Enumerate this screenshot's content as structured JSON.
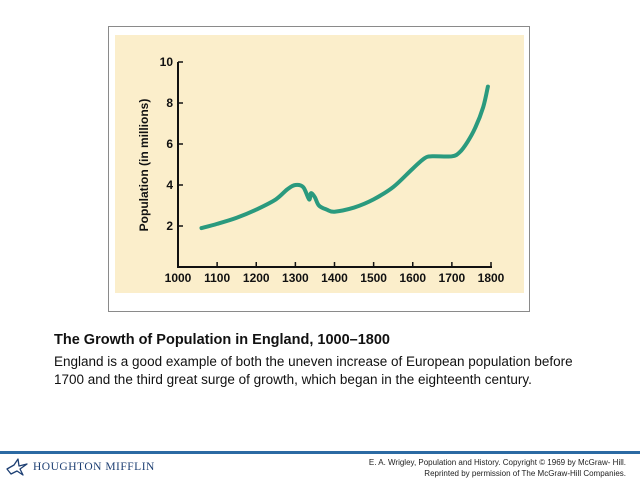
{
  "chart_data": {
    "type": "line",
    "ylabel": "Population (in millions)",
    "xlim": [
      1000,
      1800
    ],
    "ylim": [
      0,
      10
    ],
    "xticks": [
      1000,
      1100,
      1200,
      1300,
      1400,
      1500,
      1600,
      1700,
      1800
    ],
    "yticks": [
      2,
      4,
      6,
      8,
      10
    ],
    "grid": false,
    "line_color": "#2a9a7e",
    "background_color": "#fbeecb",
    "series": [
      {
        "x": [
          1060,
          1100,
          1150,
          1200,
          1250,
          1280,
          1300,
          1320,
          1335,
          1340,
          1350,
          1360,
          1380,
          1400,
          1450,
          1500,
          1550,
          1600,
          1630,
          1650,
          1700,
          1720,
          1740,
          1760,
          1780,
          1792
        ],
        "y": [
          1.9,
          2.1,
          2.4,
          2.8,
          3.3,
          3.8,
          4.0,
          3.9,
          3.3,
          3.6,
          3.4,
          3.0,
          2.8,
          2.7,
          2.9,
          3.3,
          3.9,
          4.8,
          5.3,
          5.4,
          5.4,
          5.6,
          6.1,
          6.8,
          7.8,
          8.8
        ]
      }
    ]
  },
  "caption": {
    "title": "The Growth of Population in England, 1000–1800",
    "body": "England is a good example of both the uneven increase of European population before 1700 and the third great surge of growth, which began in the eighteenth century."
  },
  "footer": {
    "publisher": "HOUGHTON MIFFLIN",
    "credit_line1": "E. A. Wrigley, Population and History. Copyright © 1969 by McGraw- Hill.",
    "credit_line2": "Reprinted by permission of The McGraw-Hill Companies.",
    "rule_color": "#2b6aa3"
  }
}
